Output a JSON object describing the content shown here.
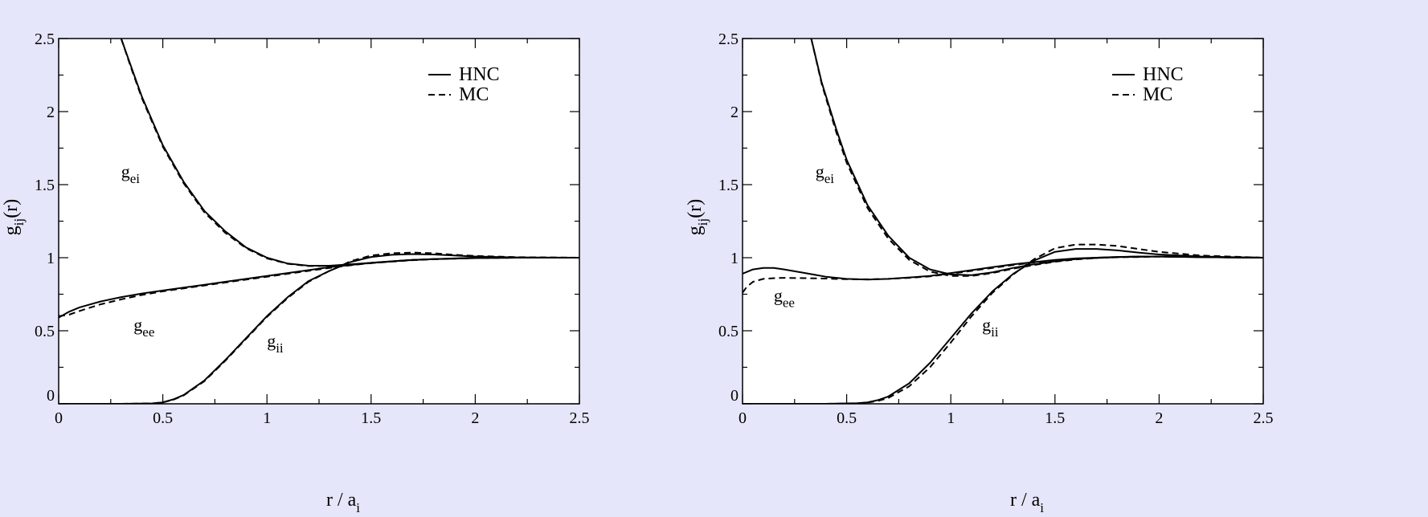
{
  "background": "#e6e6fa",
  "chart_data": [
    {
      "type": "line",
      "panel": "left",
      "xlabel": "r / a",
      "xlabel_sub": "i",
      "ylabel": "g",
      "ylabel_sub": "ij",
      "ylabel_tail": "(r)",
      "xlim": [
        0,
        2.5
      ],
      "ylim": [
        0,
        2.5
      ],
      "xticks": [
        0,
        0.5,
        1,
        1.5,
        2,
        2.5
      ],
      "xtick_labels": [
        "0",
        "0.5",
        "1",
        "1.5",
        "2",
        "2.5"
      ],
      "yticks": [
        0,
        0.5,
        1,
        1.5,
        2,
        2.5
      ],
      "ytick_labels": [
        "0",
        "0.5",
        "1",
        "1.5",
        "2",
        "2.5"
      ],
      "grid": false,
      "legend": {
        "placement": "top-right",
        "entries": [
          {
            "label": "HNC",
            "style": "solid"
          },
          {
            "label": "MC",
            "style": "dashed"
          }
        ]
      },
      "annotations": [
        {
          "base": "g",
          "sub": "ei",
          "x": 0.3,
          "y": 1.55
        },
        {
          "base": "g",
          "sub": "ee",
          "x": 0.36,
          "y": 0.5
        },
        {
          "base": "g",
          "sub": "ii",
          "x": 1.0,
          "y": 0.39
        }
      ],
      "series": [
        {
          "key": "gei",
          "style": "solid",
          "x": [
            0.3,
            0.35,
            0.4,
            0.5,
            0.6,
            0.7,
            0.8,
            0.9,
            1.0,
            1.1,
            1.2,
            1.3,
            1.4,
            1.5,
            1.6,
            1.7,
            1.8,
            1.9,
            2.0,
            2.2,
            2.5
          ],
          "y": [
            2.5,
            2.3,
            2.1,
            1.77,
            1.52,
            1.32,
            1.18,
            1.07,
            1.0,
            0.96,
            0.945,
            0.945,
            0.955,
            0.965,
            0.975,
            0.985,
            0.99,
            0.995,
            1.0,
            1.0,
            1.0
          ]
        },
        {
          "key": "gei",
          "style": "dashed",
          "x": [
            0.3,
            0.35,
            0.4,
            0.5,
            0.6,
            0.7,
            0.8,
            0.9,
            1.0,
            1.1,
            1.2,
            1.3,
            1.4,
            1.5,
            1.6,
            1.7,
            1.8,
            1.9,
            2.0,
            2.2,
            2.5
          ],
          "y": [
            2.5,
            2.29,
            2.09,
            1.76,
            1.51,
            1.31,
            1.17,
            1.065,
            0.995,
            0.958,
            0.943,
            0.944,
            0.953,
            0.963,
            0.973,
            0.983,
            0.989,
            0.994,
            0.998,
            1.0,
            1.0
          ]
        },
        {
          "key": "gee",
          "style": "solid",
          "x": [
            0.0,
            0.05,
            0.1,
            0.2,
            0.3,
            0.4,
            0.5,
            0.6,
            0.7,
            0.8,
            0.9,
            1.0,
            1.1,
            1.2,
            1.3,
            1.4,
            1.5,
            1.6,
            1.7,
            1.8,
            2.0,
            2.2,
            2.5
          ],
          "y": [
            0.59,
            0.63,
            0.66,
            0.7,
            0.73,
            0.755,
            0.775,
            0.795,
            0.815,
            0.835,
            0.855,
            0.875,
            0.895,
            0.915,
            0.935,
            0.95,
            0.965,
            0.975,
            0.985,
            0.99,
            0.997,
            1.0,
            1.0
          ]
        },
        {
          "key": "gee",
          "style": "dashed",
          "x": [
            0.0,
            0.05,
            0.1,
            0.2,
            0.3,
            0.4,
            0.5,
            0.6,
            0.7,
            0.8,
            0.9,
            1.0,
            1.1,
            1.2,
            1.3,
            1.4,
            1.5,
            1.6,
            1.7,
            1.8,
            2.0,
            2.2,
            2.5
          ],
          "y": [
            0.6,
            0.61,
            0.635,
            0.68,
            0.715,
            0.745,
            0.77,
            0.79,
            0.81,
            0.83,
            0.85,
            0.87,
            0.89,
            0.91,
            0.93,
            0.948,
            0.963,
            0.974,
            0.984,
            0.99,
            0.997,
            1.0,
            1.0
          ]
        },
        {
          "key": "gii",
          "style": "solid",
          "x": [
            0.0,
            0.3,
            0.45,
            0.5,
            0.55,
            0.6,
            0.7,
            0.8,
            0.9,
            1.0,
            1.1,
            1.2,
            1.3,
            1.35,
            1.4,
            1.5,
            1.6,
            1.7,
            1.8,
            1.9,
            2.0,
            2.2,
            2.5
          ],
          "y": [
            0.0,
            0.0,
            0.003,
            0.01,
            0.03,
            0.06,
            0.16,
            0.3,
            0.45,
            0.6,
            0.73,
            0.84,
            0.91,
            0.94,
            0.97,
            1.005,
            1.02,
            1.025,
            1.022,
            1.015,
            1.008,
            1.002,
            1.0
          ]
        },
        {
          "key": "gii",
          "style": "dashed",
          "x": [
            0.0,
            0.3,
            0.45,
            0.5,
            0.55,
            0.6,
            0.7,
            0.8,
            0.9,
            1.0,
            1.1,
            1.2,
            1.3,
            1.35,
            1.4,
            1.5,
            1.6,
            1.7,
            1.8,
            1.9,
            2.0,
            2.2,
            2.5
          ],
          "y": [
            0.0,
            0.0,
            0.003,
            0.01,
            0.028,
            0.057,
            0.155,
            0.295,
            0.445,
            0.595,
            0.725,
            0.835,
            0.91,
            0.94,
            0.975,
            1.015,
            1.03,
            1.035,
            1.03,
            1.02,
            1.012,
            1.004,
            1.0
          ]
        }
      ]
    },
    {
      "type": "line",
      "panel": "right",
      "xlabel": "r / a",
      "xlabel_sub": "i",
      "ylabel": "g",
      "ylabel_sub": "ij",
      "ylabel_tail": "(r)",
      "xlim": [
        0,
        2.5
      ],
      "ylim": [
        0,
        2.5
      ],
      "xticks": [
        0,
        0.5,
        1,
        1.5,
        2,
        2.5
      ],
      "xtick_labels": [
        "0",
        "0.5",
        "1",
        "1.5",
        "2",
        "2.5"
      ],
      "yticks": [
        0,
        0.5,
        1,
        1.5,
        2,
        2.5
      ],
      "ytick_labels": [
        "0",
        "0.5",
        "1",
        "1.5",
        "2",
        "2.5"
      ],
      "grid": false,
      "legend": {
        "placement": "top-right",
        "entries": [
          {
            "label": "HNC",
            "style": "solid"
          },
          {
            "label": "MC",
            "style": "dashed"
          }
        ]
      },
      "annotations": [
        {
          "base": "g",
          "sub": "ei",
          "x": 0.35,
          "y": 1.55
        },
        {
          "base": "g",
          "sub": "ee",
          "x": 0.15,
          "y": 0.7
        },
        {
          "base": "g",
          "sub": "ii",
          "x": 1.15,
          "y": 0.5
        }
      ],
      "series": [
        {
          "key": "gei",
          "style": "solid",
          "x": [
            0.33,
            0.38,
            0.45,
            0.5,
            0.6,
            0.7,
            0.8,
            0.9,
            1.0,
            1.1,
            1.2,
            1.3,
            1.4,
            1.5,
            1.6,
            1.7,
            1.8,
            1.9,
            2.0,
            2.2,
            2.5
          ],
          "y": [
            2.5,
            2.2,
            1.88,
            1.67,
            1.36,
            1.15,
            1.0,
            0.92,
            0.885,
            0.88,
            0.9,
            0.93,
            0.955,
            0.975,
            0.99,
            1.0,
            1.005,
            1.008,
            1.008,
            1.004,
            1.0
          ]
        },
        {
          "key": "gei",
          "style": "dashed",
          "x": [
            0.33,
            0.38,
            0.45,
            0.5,
            0.6,
            0.7,
            0.8,
            0.9,
            1.0,
            1.1,
            1.2,
            1.3,
            1.4,
            1.5,
            1.6,
            1.7,
            1.8,
            1.9,
            2.0,
            2.2,
            2.5
          ],
          "y": [
            2.5,
            2.19,
            1.86,
            1.65,
            1.34,
            1.13,
            0.985,
            0.905,
            0.875,
            0.875,
            0.895,
            0.925,
            0.95,
            0.972,
            0.988,
            0.998,
            1.004,
            1.007,
            1.008,
            1.004,
            1.0
          ]
        },
        {
          "key": "gee",
          "style": "solid",
          "x": [
            0.0,
            0.05,
            0.1,
            0.15,
            0.2,
            0.3,
            0.4,
            0.5,
            0.6,
            0.7,
            0.8,
            0.9,
            1.0,
            1.1,
            1.2,
            1.3,
            1.4,
            1.5,
            1.6,
            1.8,
            2.0,
            2.2,
            2.5
          ],
          "y": [
            0.89,
            0.92,
            0.93,
            0.93,
            0.92,
            0.895,
            0.87,
            0.855,
            0.85,
            0.855,
            0.865,
            0.875,
            0.895,
            0.915,
            0.935,
            0.955,
            0.97,
            0.985,
            0.995,
            1.005,
            1.008,
            1.004,
            1.0
          ]
        },
        {
          "key": "gee",
          "style": "dashed",
          "x": [
            0.0,
            0.02,
            0.05,
            0.1,
            0.15,
            0.2,
            0.3,
            0.4,
            0.5,
            0.6,
            0.7,
            0.8,
            0.9,
            1.0,
            1.1,
            1.2,
            1.3,
            1.4,
            1.5,
            1.6,
            1.8,
            2.0,
            2.2,
            2.5
          ],
          "y": [
            0.76,
            0.8,
            0.835,
            0.855,
            0.86,
            0.862,
            0.86,
            0.857,
            0.853,
            0.852,
            0.855,
            0.862,
            0.872,
            0.89,
            0.91,
            0.93,
            0.95,
            0.967,
            0.982,
            0.993,
            1.003,
            1.007,
            1.004,
            1.0
          ]
        },
        {
          "key": "gii",
          "style": "solid",
          "x": [
            0.0,
            0.4,
            0.55,
            0.6,
            0.65,
            0.7,
            0.8,
            0.9,
            1.0,
            1.1,
            1.2,
            1.3,
            1.35,
            1.4,
            1.5,
            1.6,
            1.7,
            1.8,
            1.9,
            2.0,
            2.2,
            2.5
          ],
          "y": [
            0.0,
            0.0,
            0.004,
            0.01,
            0.025,
            0.05,
            0.14,
            0.28,
            0.45,
            0.62,
            0.77,
            0.89,
            0.935,
            0.98,
            1.04,
            1.06,
            1.06,
            1.05,
            1.035,
            1.022,
            1.008,
            1.0
          ]
        },
        {
          "key": "gii",
          "style": "dashed",
          "x": [
            0.0,
            0.4,
            0.55,
            0.6,
            0.65,
            0.7,
            0.8,
            0.9,
            1.0,
            1.1,
            1.2,
            1.3,
            1.35,
            1.4,
            1.5,
            1.6,
            1.7,
            1.8,
            1.9,
            2.0,
            2.2,
            2.5
          ],
          "y": [
            0.0,
            0.0,
            0.003,
            0.008,
            0.02,
            0.04,
            0.12,
            0.25,
            0.42,
            0.6,
            0.76,
            0.885,
            0.94,
            0.99,
            1.065,
            1.09,
            1.09,
            1.08,
            1.06,
            1.04,
            1.015,
            1.0
          ]
        }
      ]
    }
  ]
}
